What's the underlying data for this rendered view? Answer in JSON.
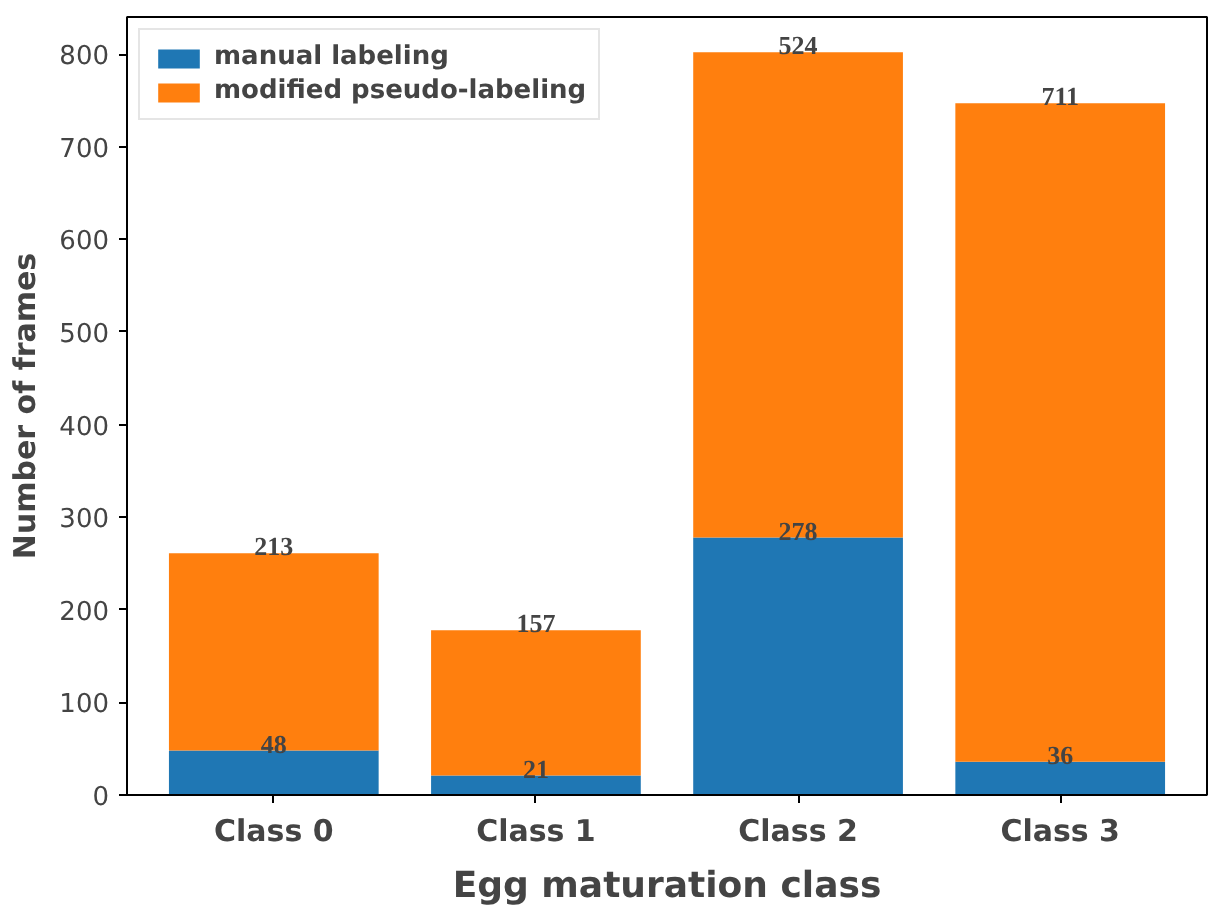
{
  "chart_data": {
    "type": "bar",
    "stacked": true,
    "xlabel": "Egg maturation class",
    "ylabel": "Number of frames",
    "categories": [
      "Class 0",
      "Class 1",
      "Class 2",
      "Class 3"
    ],
    "series": [
      {
        "name": "manual labeling",
        "color": "#1f77b4",
        "values": [
          48,
          21,
          278,
          36
        ]
      },
      {
        "name": "modified pseudo-labeling",
        "color": "#ff7f0e",
        "values": [
          213,
          157,
          524,
          711
        ]
      }
    ],
    "ylim": [
      0,
      840
    ],
    "yticks": [
      0,
      100,
      200,
      300,
      400,
      500,
      600,
      700,
      800
    ],
    "data_labels": true,
    "legend": "top left"
  }
}
